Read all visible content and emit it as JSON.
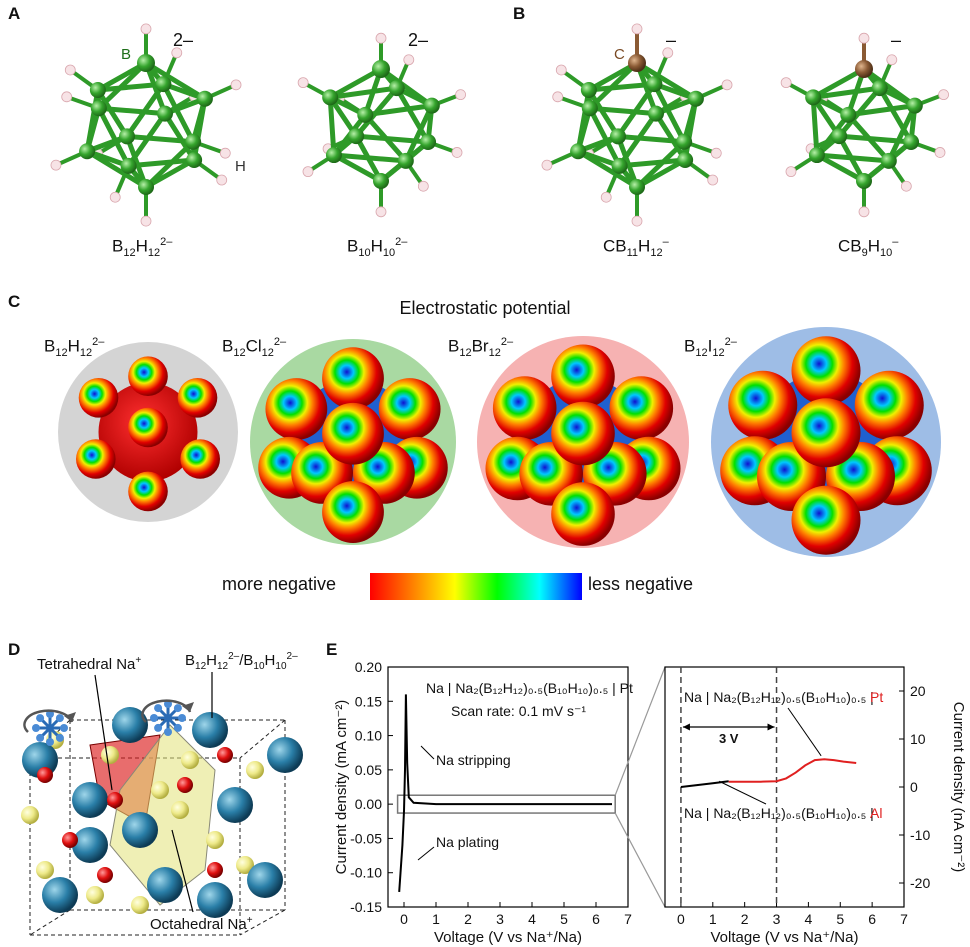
{
  "panels": {
    "a": "A",
    "b": "B",
    "c": "C",
    "d": "D",
    "e": "E"
  },
  "structures": {
    "items": [
      {
        "formula_base": "B",
        "sub1": "12",
        "mid": "H",
        "sub2": "12",
        "sup": "2–",
        "charge": "2–"
      },
      {
        "formula_base": "B",
        "sub1": "10",
        "mid": "H",
        "sub2": "10",
        "sup": "2–",
        "charge": "2–"
      },
      {
        "formula_base": "CB",
        "sub1": "11",
        "mid": "H",
        "sub2": "12",
        "sup": "–",
        "charge": "–"
      },
      {
        "formula_base": "CB",
        "sub1": "9",
        "mid": "H",
        "sub2": "10",
        "sup": "–",
        "charge": "–"
      }
    ],
    "atom_labels": {
      "boron": "B",
      "hydrogen": "H",
      "carbon": "C"
    },
    "colors": {
      "boron": "#35a52d",
      "hydrogen": "#f7e3e6",
      "carbon": "#8a5a34",
      "bond": "#2e9a28"
    }
  },
  "esp": {
    "title": "Electrostatic potential",
    "items": [
      {
        "base": "B",
        "s1": "12",
        "mid": "H",
        "s2": "12",
        "sup": "2–",
        "bg": "#d4d4d4"
      },
      {
        "base": "B",
        "s1": "12",
        "mid": "Cl",
        "s2": "12",
        "sup": "2–",
        "bg": "#a9d9a2"
      },
      {
        "base": "B",
        "s1": "12",
        "mid": "Br",
        "s2": "12",
        "sup": "2–",
        "bg": "#f6b2b2"
      },
      {
        "base": "B",
        "s1": "12",
        "mid": "I",
        "s2": "12",
        "sup": "2–",
        "bg": "#9ebde6"
      }
    ],
    "scale_left": "more negative",
    "scale_right": "less negative",
    "scale_colors": [
      "#ff0000",
      "#ff8000",
      "#ffff00",
      "#00ff00",
      "#00ffff",
      "#0000ff"
    ]
  },
  "crystal": {
    "tetrahedral_label": "Tetrahedral Na",
    "tetrahedral_sup": "+",
    "octahedral_label": "Octahedral Na",
    "octahedral_sup": "+",
    "anion_label": {
      "b1": "B",
      "s1": "12",
      "h1": "H",
      "s2": "12",
      "sup1": "2–",
      "sep": "/B",
      "s3": "10",
      "h2": "H",
      "s4": "10",
      "sup2": "2–"
    }
  },
  "chart_data": [
    {
      "type": "line",
      "ylabel": "Current density (mA cm⁻²)",
      "xlabel": "Voltage (V vs Na⁺/Na)",
      "xlim": [
        -0.5,
        7
      ],
      "ylim": [
        -0.15,
        0.2
      ],
      "xticks": [
        "0",
        "1",
        "2",
        "3",
        "4",
        "5",
        "6",
        "7"
      ],
      "yticks": [
        "0.20",
        "0.15",
        "0.10",
        "0.05",
        "0.00",
        "-0.05",
        "-0.10",
        "-0.15"
      ],
      "annotation_cell": "Na | Na₂(B₁₂H₁₂)₀.₅(B₁₀H₁₀)₀.₅ | Pt",
      "annotation_rate": "Scan rate: 0.1 mV s⁻¹",
      "annotation_stripping": "Na stripping",
      "annotation_plating": "Na plating",
      "series": [
        {
          "color": "#000000",
          "x": [
            -0.15,
            -0.05,
            0.0,
            0.03,
            0.06,
            0.1,
            0.15,
            0.3,
            1,
            2,
            3,
            4,
            5,
            6,
            6.5
          ],
          "y": [
            -0.128,
            -0.06,
            -0.01,
            0.05,
            0.16,
            0.06,
            0.01,
            0.002,
            0.0,
            0.0,
            0.0,
            0.0,
            0.0,
            0.0,
            0.0
          ]
        }
      ]
    },
    {
      "type": "line",
      "ylabel": "Current density (nA cm⁻²)",
      "xlabel": "Voltage (V vs Na⁺/Na)",
      "xlim": [
        -0.5,
        7
      ],
      "ylim": [
        -25,
        25
      ],
      "xticks": [
        "0",
        "1",
        "2",
        "3",
        "4",
        "5",
        "6",
        "7"
      ],
      "yticks": [
        "20",
        "10",
        "0",
        "-10",
        "-20"
      ],
      "annotation_pt_cell": "Na | Na₂(B₁₂H₁₂)₀.₅(B₁₀H₁₀)₀.₅ |",
      "annotation_pt": "Pt",
      "annotation_al_cell": "Na | Na₂(B₁₂H₁₂)₀.₅(B₁₀H₁₀)₀.₅ |",
      "annotation_al": "Al",
      "annotation_window": "3 V",
      "series": [
        {
          "color": "#000000",
          "x": [
            0,
            0.5,
            1.0,
            1.5
          ],
          "y": [
            0.0,
            0.4,
            0.8,
            1.2
          ]
        },
        {
          "color": "#e02020",
          "x": [
            1.5,
            2,
            2.5,
            3.0,
            3.3,
            3.6,
            3.9,
            4.2,
            4.5,
            4.8,
            5.1,
            5.5
          ],
          "y": [
            1.1,
            1.1,
            1.1,
            1.2,
            1.8,
            3.0,
            4.5,
            5.6,
            5.8,
            5.6,
            5.3,
            5.0
          ]
        }
      ]
    }
  ]
}
